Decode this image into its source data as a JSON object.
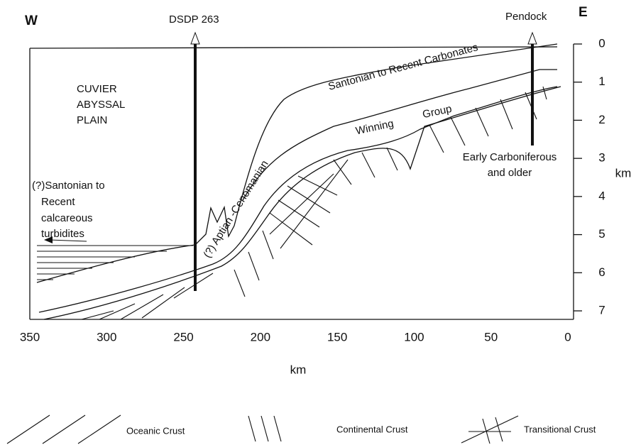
{
  "labels": {
    "west": "W",
    "east": "E",
    "well_1": "DSDP 263",
    "well_2": "Pendock",
    "plain": [
      "CUVIER",
      "ABYSSAL",
      "PLAIN"
    ],
    "turbidites": [
      "(?)Santonian to",
      "Recent",
      "calcareous",
      "turbidites"
    ],
    "carbonates": "Santonian to Recent Carbonates",
    "winning": [
      "Winning",
      "Group"
    ],
    "aptian": "(?) Aptian  -Cenomanian",
    "basement": [
      "Early Carboniferous",
      "and older"
    ]
  },
  "x_axis": {
    "label": "km",
    "ticks": [
      350,
      300,
      250,
      200,
      150,
      100,
      50,
      0
    ]
  },
  "y_axis": {
    "label": "km",
    "ticks": [
      0,
      1,
      2,
      3,
      4,
      5,
      6,
      7
    ]
  },
  "legend": [
    {
      "label": "Oceanic Crust"
    },
    {
      "label": "Continental Crust"
    },
    {
      "label": "Transitional Crust"
    }
  ]
}
